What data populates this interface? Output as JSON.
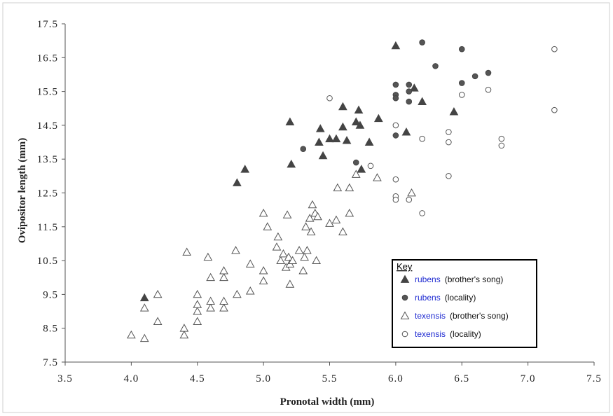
{
  "chart_data": {
    "type": "scatter",
    "xlabel": "Pronotal  width  (mm)",
    "ylabel": "Ovipositor  length  (mm)",
    "xlim": [
      3.5,
      7.5
    ],
    "ylim": [
      7.5,
      17.5
    ],
    "xticks": [
      "3.5",
      "4.0",
      "4.5",
      "5.0",
      "5.5",
      "6.0",
      "6.5",
      "7.0",
      "7.5"
    ],
    "yticks": [
      "7.5",
      "8.5",
      "9.5",
      "10.5",
      "11.5",
      "12.5",
      "13.5",
      "14.5",
      "15.5",
      "16.5",
      "17.5"
    ],
    "legend": {
      "title": "Key",
      "position": "bottom-right",
      "entries": [
        {
          "species": "rubens",
          "note": "(brother's song)"
        },
        {
          "species": "rubens",
          "note": "(locality)"
        },
        {
          "species": "texensis",
          "note": "(brother's song)"
        },
        {
          "species": "texensis",
          "note": "(locality)"
        }
      ]
    },
    "series": [
      {
        "name": "rubens (brother's song)",
        "marker": "triangle-filled",
        "points": [
          [
            4.1,
            9.4
          ],
          [
            4.8,
            12.8
          ],
          [
            4.86,
            13.2
          ],
          [
            5.2,
            14.6
          ],
          [
            5.21,
            13.35
          ],
          [
            5.42,
            14.0
          ],
          [
            5.43,
            14.4
          ],
          [
            5.45,
            13.6
          ],
          [
            5.5,
            14.1
          ],
          [
            5.55,
            14.1
          ],
          [
            5.6,
            14.45
          ],
          [
            5.6,
            15.05
          ],
          [
            5.63,
            14.05
          ],
          [
            5.7,
            14.6
          ],
          [
            5.72,
            14.95
          ],
          [
            5.73,
            14.5
          ],
          [
            5.74,
            13.2
          ],
          [
            5.8,
            14.0
          ],
          [
            5.87,
            14.7
          ],
          [
            6.0,
            16.85
          ],
          [
            6.08,
            14.3
          ],
          [
            6.14,
            15.6
          ],
          [
            6.2,
            15.2
          ],
          [
            6.44,
            14.9
          ]
        ]
      },
      {
        "name": "rubens (locality)",
        "marker": "circle-filled",
        "points": [
          [
            5.3,
            13.8
          ],
          [
            5.7,
            13.4
          ],
          [
            6.0,
            15.7
          ],
          [
            6.0,
            15.4
          ],
          [
            6.0,
            15.3
          ],
          [
            6.0,
            14.2
          ],
          [
            6.1,
            15.7
          ],
          [
            6.1,
            15.5
          ],
          [
            6.1,
            15.2
          ],
          [
            6.2,
            16.95
          ],
          [
            6.3,
            16.25
          ],
          [
            6.5,
            16.75
          ],
          [
            6.5,
            15.75
          ],
          [
            6.6,
            15.95
          ],
          [
            6.7,
            16.05
          ]
        ]
      },
      {
        "name": "texensis (brother's song)",
        "marker": "triangle-open",
        "points": [
          [
            4.0,
            8.3
          ],
          [
            4.1,
            8.2
          ],
          [
            4.1,
            9.1
          ],
          [
            4.2,
            8.7
          ],
          [
            4.2,
            9.5
          ],
          [
            4.4,
            8.3
          ],
          [
            4.4,
            8.5
          ],
          [
            4.42,
            10.75
          ],
          [
            4.5,
            8.7
          ],
          [
            4.5,
            9.0
          ],
          [
            4.5,
            9.2
          ],
          [
            4.5,
            9.5
          ],
          [
            4.58,
            10.6
          ],
          [
            4.6,
            9.1
          ],
          [
            4.6,
            9.3
          ],
          [
            4.6,
            10.0
          ],
          [
            4.7,
            9.1
          ],
          [
            4.7,
            9.3
          ],
          [
            4.7,
            10.0
          ],
          [
            4.7,
            10.2
          ],
          [
            4.79,
            10.8
          ],
          [
            4.8,
            9.5
          ],
          [
            4.9,
            9.6
          ],
          [
            4.9,
            10.4
          ],
          [
            5.0,
            9.9
          ],
          [
            5.0,
            10.2
          ],
          [
            5.0,
            11.9
          ],
          [
            5.03,
            11.5
          ],
          [
            5.1,
            10.9
          ],
          [
            5.11,
            11.2
          ],
          [
            5.13,
            10.5
          ],
          [
            5.15,
            10.7
          ],
          [
            5.17,
            10.3
          ],
          [
            5.18,
            11.85
          ],
          [
            5.19,
            10.6
          ],
          [
            5.2,
            9.8
          ],
          [
            5.2,
            10.4
          ],
          [
            5.22,
            10.5
          ],
          [
            5.27,
            10.8
          ],
          [
            5.3,
            10.2
          ],
          [
            5.31,
            10.6
          ],
          [
            5.32,
            11.5
          ],
          [
            5.33,
            10.8
          ],
          [
            5.35,
            11.75
          ],
          [
            5.36,
            11.35
          ],
          [
            5.37,
            12.15
          ],
          [
            5.39,
            11.9
          ],
          [
            5.4,
            10.5
          ],
          [
            5.41,
            11.8
          ],
          [
            5.5,
            11.6
          ],
          [
            5.55,
            11.7
          ],
          [
            5.56,
            12.65
          ],
          [
            5.6,
            11.35
          ],
          [
            5.65,
            11.9
          ],
          [
            5.65,
            12.65
          ],
          [
            5.7,
            13.05
          ],
          [
            5.86,
            12.95
          ],
          [
            6.12,
            12.5
          ]
        ]
      },
      {
        "name": "texensis (locality)",
        "marker": "circle-open",
        "points": [
          [
            5.5,
            15.3
          ],
          [
            5.81,
            13.3
          ],
          [
            6.0,
            12.9
          ],
          [
            6.0,
            12.4
          ],
          [
            6.0,
            12.3
          ],
          [
            6.0,
            14.5
          ],
          [
            6.1,
            12.3
          ],
          [
            6.2,
            11.9
          ],
          [
            6.2,
            14.1
          ],
          [
            6.4,
            14.3
          ],
          [
            6.4,
            14.0
          ],
          [
            6.4,
            13.0
          ],
          [
            6.5,
            15.4
          ],
          [
            6.7,
            15.55
          ],
          [
            6.8,
            14.1
          ],
          [
            6.8,
            13.9
          ],
          [
            7.2,
            16.75
          ],
          [
            7.2,
            14.95
          ]
        ]
      }
    ]
  },
  "colors": {
    "species_text": "#1f2bd1",
    "marker": "#555555",
    "axis": "#555555"
  }
}
